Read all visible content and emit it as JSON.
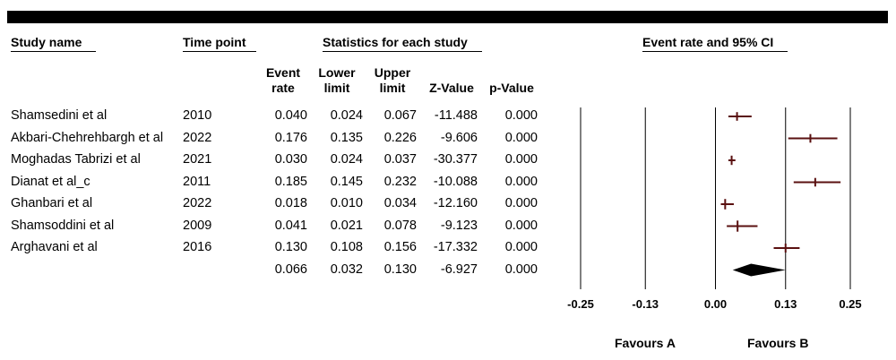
{
  "headers": {
    "study_name": "Study name",
    "time_point": "Time point",
    "statistics": "Statistics for each study",
    "event_ci": "Event rate and 95% CI"
  },
  "columns": {
    "event_rate": [
      "Event",
      "rate"
    ],
    "lower_limit": [
      "Lower",
      "limit"
    ],
    "upper_limit": [
      "Upper",
      "limit"
    ],
    "z_value": "Z-Value",
    "p_value": "p-Value"
  },
  "favours": {
    "a": "Favours A",
    "b": "Favours B"
  },
  "chart_data": {
    "type": "forest",
    "xlim": [
      -0.25,
      0.25
    ],
    "ticks": [
      "-0.25",
      "-0.13",
      "0.00",
      "0.13",
      "0.25"
    ],
    "studies": [
      {
        "name": "Shamsedini et al",
        "time": "2010",
        "rate": "0.040",
        "lower": "0.024",
        "upper": "0.067",
        "z": "-11.488",
        "p": "0.000",
        "weight": 0.9
      },
      {
        "name": "Akbari-Chehrehbargh et al",
        "time": "2022",
        "rate": "0.176",
        "lower": "0.135",
        "upper": "0.226",
        "z": "-9.606",
        "p": "0.000",
        "weight": 0.9
      },
      {
        "name": "Moghadas Tabrizi et al",
        "time": "2021",
        "rate": "0.030",
        "lower": "0.024",
        "upper": "0.037",
        "z": "-30.377",
        "p": "0.000",
        "weight": 1.1
      },
      {
        "name": "Dianat et al_c",
        "time": "2011",
        "rate": "0.185",
        "lower": "0.145",
        "upper": "0.232",
        "z": "-10.088",
        "p": "0.000",
        "weight": 0.9
      },
      {
        "name": "Ghanbari et al",
        "time": "2022",
        "rate": "0.018",
        "lower": "0.010",
        "upper": "0.034",
        "z": "-12.160",
        "p": "0.000",
        "weight": 1.4
      },
      {
        "name": "Shamsoddini et al",
        "time": "2009",
        "rate": "0.041",
        "lower": "0.021",
        "upper": "0.078",
        "z": "-9.123",
        "p": "0.000",
        "weight": 1.6
      },
      {
        "name": "Arghavani et al",
        "time": "2016",
        "rate": "0.130",
        "lower": "0.108",
        "upper": "0.156",
        "z": "-17.332",
        "p": "0.000",
        "weight": 1.0
      }
    ],
    "summary": {
      "rate": "0.066",
      "lower": "0.032",
      "upper": "0.130",
      "z": "-6.927",
      "p": "0.000"
    },
    "colors": {
      "study": "#5a1010",
      "summary": "#000000"
    }
  }
}
